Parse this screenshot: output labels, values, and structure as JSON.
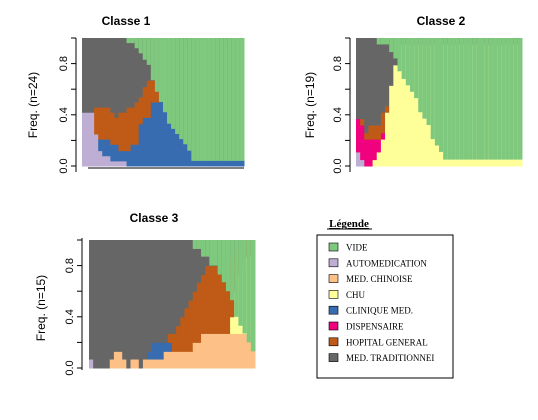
{
  "palette": {
    "VIDE": "#7fc97f",
    "AUTOMEDICATION": "#beaed4",
    "MED_CHINOISE": "#fdc086",
    "CHU": "#ffff99",
    "CLINIQUE_MED": "#386cb0",
    "DISPENSAIRE": "#f0027f",
    "HOPITAL_GENERAL": "#bf5b17",
    "MED_TRADITIONNEL": "#666666"
  },
  "legend": {
    "title": "Légende",
    "items": [
      {
        "key": "VIDE",
        "label": "VIDE"
      },
      {
        "key": "AUTOMEDICATION",
        "label": "AUTOMEDICATION"
      },
      {
        "key": "MED_CHINOISE",
        "label": "MED. CHINOISE"
      },
      {
        "key": "CHU",
        "label": "CHU"
      },
      {
        "key": "CLINIQUE_MED",
        "label": "CLINIQUE MED."
      },
      {
        "key": "DISPENSAIRE",
        "label": "DISPENSAIRE"
      },
      {
        "key": "HOPITAL_GENERAL",
        "label": "HOPITAL GENERAL"
      },
      {
        "key": "MED_TRADITIONNEL",
        "label": "MED. TRADITIONNEI"
      }
    ]
  },
  "chart_data": [
    {
      "type": "area",
      "title": "Classe 1",
      "ylabel": "Freq. (n=24)",
      "ylim": [
        0,
        1
      ],
      "yticks": [
        "0.0",
        "0.4",
        "0.8"
      ],
      "x_axis_line": true,
      "cumulative_boundaries": {
        "AUTOMEDICATION": [
          0.42,
          0.42,
          0.42,
          0.25,
          0.12,
          0.08,
          0.08,
          0.04,
          0.04,
          0.04,
          0.04,
          0,
          0,
          0,
          0,
          0,
          0,
          0,
          0,
          0,
          0,
          0,
          0,
          0,
          0,
          0,
          0,
          0,
          0,
          0,
          0,
          0,
          0,
          0,
          0,
          0,
          0,
          0,
          0,
          0
        ],
        "MED_CHINOISE": [
          0.42,
          0.42,
          0.42,
          0.25,
          0.12,
          0.08,
          0.08,
          0.04,
          0.04,
          0.04,
          0.04,
          0,
          0,
          0,
          0,
          0,
          0,
          0,
          0,
          0,
          0,
          0,
          0,
          0,
          0,
          0,
          0,
          0,
          0,
          0,
          0,
          0,
          0,
          0,
          0,
          0,
          0,
          0,
          0,
          0
        ],
        "CHU": [
          0.42,
          0.42,
          0.42,
          0.25,
          0.12,
          0.08,
          0.08,
          0.04,
          0.04,
          0.04,
          0.04,
          0,
          0,
          0,
          0,
          0,
          0,
          0,
          0,
          0,
          0,
          0,
          0,
          0,
          0,
          0,
          0,
          0,
          0,
          0,
          0,
          0,
          0,
          0,
          0,
          0,
          0,
          0,
          0,
          0
        ],
        "CLINIQUE_MED": [
          0.42,
          0.42,
          0.42,
          0.25,
          0.21,
          0.21,
          0.21,
          0.17,
          0.17,
          0.12,
          0.12,
          0.12,
          0.17,
          0.17,
          0.33,
          0.38,
          0.38,
          0.5,
          0.5,
          0.67,
          0.67,
          0.75,
          0.79,
          0.83,
          0.88,
          0.92,
          0.96,
          0.96,
          0.96,
          0.96,
          0.96,
          0.96,
          0.96,
          0.96,
          0.96,
          0.96,
          0.96,
          0.96,
          0.96,
          0.96
        ],
        "HOPITAL_GENERAL": [
          0.42,
          0.42,
          0.42,
          0.46,
          0.46,
          0.46,
          0.46,
          0.42,
          0.38,
          0.42,
          0.42,
          0.46,
          0.46,
          0.5,
          0.54,
          0.62,
          0.67,
          0.67,
          0.67,
          0.71,
          0.71,
          0.75,
          0.79,
          0.83,
          0.88,
          0.92,
          0.96,
          0.96,
          0.96,
          0.96,
          0.96,
          0.96,
          0.96,
          0.96,
          0.96,
          0.96,
          0.96,
          0.96,
          0.96,
          0.96
        ],
        "MED_TRADITIONNEL": [
          1,
          1,
          1,
          1,
          1,
          1,
          1,
          1,
          1,
          1,
          1,
          1,
          1,
          1,
          1,
          1,
          1,
          1,
          1,
          1,
          1,
          1,
          1,
          1,
          1,
          1,
          1,
          1,
          1,
          1,
          1,
          1,
          1,
          1,
          1,
          1,
          1,
          1,
          1,
          1
        ],
        "VIDE": [
          0,
          0,
          0,
          0,
          0,
          0,
          0,
          0,
          0,
          0,
          0,
          0.04,
          0.04,
          0.08,
          0.12,
          0.17,
          0.21,
          0.33,
          0.42,
          0.5,
          0.58,
          0.67,
          0.71,
          0.75,
          0.79,
          0.83,
          0.88,
          0.96,
          0.96,
          0.96,
          0.96,
          0.96,
          0.96,
          0.96,
          0.96,
          0.96,
          0.96,
          0.96,
          0.96,
          0.96
        ]
      }
    },
    {
      "type": "area",
      "title": "Classe 2",
      "ylabel": "Freq. (n=19)",
      "ylim": [
        0,
        1
      ],
      "yticks": [
        "0.0",
        "0.4",
        "0.8"
      ],
      "x_axis_line": false,
      "cumulative_boundaries": {
        "AUTOMEDICATION": [
          0.11,
          0.05,
          0,
          0,
          0,
          0,
          0,
          0,
          0,
          0,
          0,
          0,
          0,
          0,
          0,
          0,
          0,
          0,
          0,
          0,
          0,
          0,
          0,
          0,
          0,
          0,
          0,
          0,
          0,
          0,
          0,
          0,
          0,
          0,
          0,
          0,
          0,
          0,
          0,
          0
        ],
        "MED_CHINOISE": [
          0.11,
          0.05,
          0,
          0,
          0,
          0,
          0,
          0,
          0,
          0,
          0,
          0,
          0,
          0,
          0,
          0,
          0,
          0,
          0,
          0,
          0,
          0,
          0,
          0,
          0,
          0,
          0,
          0,
          0,
          0,
          0,
          0,
          0,
          0,
          0,
          0,
          0,
          0,
          0,
          0
        ],
        "CHU": [
          0.11,
          0.05,
          0,
          0,
          0.05,
          0.11,
          0.21,
          0.42,
          0.63,
          0.79,
          0.89,
          0.95,
          0.95,
          0.95,
          0.95,
          0.95,
          0.95,
          0.95,
          0.95,
          0.95,
          0.95,
          0.95,
          0.95,
          0.95,
          0.95,
          0.95,
          0.95,
          0.95,
          0.95,
          0.95,
          0.95,
          0.95,
          0.95,
          0.95,
          0.95,
          0.95,
          0.95,
          0.95,
          0.95,
          0.95
        ],
        "CLINIQUE_MED": [
          0.11,
          0.05,
          0,
          0,
          0.05,
          0.11,
          0.21,
          0.42,
          0.63,
          0.79,
          0.89,
          0.95,
          0.95,
          0.95,
          0.95,
          0.95,
          0.95,
          0.95,
          0.95,
          0.95,
          0.95,
          0.95,
          0.95,
          0.95,
          0.95,
          0.95,
          0.95,
          0.95,
          0.95,
          0.95,
          0.95,
          0.95,
          0.95,
          0.95,
          0.95,
          0.95,
          0.95,
          0.95,
          0.95,
          0.95
        ],
        "DISPENSAIRE": [
          0.37,
          0.32,
          0.21,
          0.21,
          0.21,
          0.21,
          0.26,
          0.42,
          0.63,
          0.79,
          0.89,
          0.95,
          0.95,
          0.95,
          0.95,
          0.95,
          0.95,
          0.95,
          0.95,
          0.95,
          0.95,
          0.95,
          0.95,
          0.95,
          0.95,
          0.95,
          0.95,
          0.95,
          0.95,
          0.95,
          0.95,
          0.95,
          0.95,
          0.95,
          0.95,
          0.95,
          0.95,
          0.95,
          0.95,
          0.95
        ],
        "HOPITAL_GENERAL": [
          0.37,
          0.37,
          0.26,
          0.32,
          0.32,
          0.32,
          0.42,
          0.47,
          0.63,
          0.79,
          0.89,
          0.95,
          0.95,
          0.95,
          0.95,
          0.95,
          0.95,
          0.95,
          0.95,
          0.95,
          0.95,
          0.95,
          0.95,
          0.95,
          0.95,
          0.95,
          0.95,
          0.95,
          0.95,
          0.95,
          0.95,
          0.95,
          0.95,
          0.95,
          0.95,
          0.95,
          0.95,
          0.95,
          0.95,
          0.95
        ],
        "MED_TRADITIONNEL": [
          1,
          1,
          1,
          1,
          1,
          1,
          1,
          1,
          1,
          1,
          1,
          1,
          1,
          1,
          1,
          1,
          1,
          1,
          1,
          1,
          1,
          1,
          1,
          1,
          1,
          1,
          1,
          1,
          1,
          1,
          1,
          1,
          1,
          1,
          1,
          1,
          1,
          1,
          1,
          1
        ],
        "VIDE": [
          0,
          0,
          0,
          0,
          0,
          0.05,
          0.05,
          0.05,
          0.11,
          0.16,
          0.26,
          0.32,
          0.37,
          0.42,
          0.47,
          0.58,
          0.63,
          0.68,
          0.79,
          0.84,
          0.89,
          0.95,
          0.95,
          0.95,
          0.95,
          0.95,
          0.95,
          0.95,
          0.95,
          0.95,
          0.95,
          0.95,
          0.95,
          0.95,
          0.95,
          0.95,
          0.95,
          0.95,
          0.95,
          0.95
        ]
      }
    },
    {
      "type": "area",
      "title": "Classe 3",
      "ylabel": "Freq. (n=15)",
      "ylim": [
        0,
        1
      ],
      "yticks": [
        "0.0",
        "0.4",
        "0.8"
      ],
      "x_axis_line": false,
      "cumulative_boundaries": {
        "AUTOMEDICATION": [
          0.07,
          0,
          0,
          0,
          0,
          0,
          0,
          0,
          0,
          0,
          0,
          0,
          0,
          0,
          0,
          0,
          0,
          0,
          0,
          0,
          0,
          0,
          0,
          0,
          0,
          0,
          0,
          0,
          0,
          0,
          0,
          0,
          0,
          0,
          0,
          0,
          0,
          0,
          0,
          0
        ],
        "MED_CHINOISE": [
          0.07,
          0,
          0,
          0,
          0,
          0.07,
          0.13,
          0.13,
          0.07,
          0,
          0.07,
          0.07,
          0,
          0.07,
          0.07,
          0.07,
          0.07,
          0.07,
          0.13,
          0.13,
          0.13,
          0.13,
          0.13,
          0.13,
          0.13,
          0.2,
          0.2,
          0.27,
          0.27,
          0.27,
          0.27,
          0.27,
          0.27,
          0.27,
          0.27,
          0.27,
          0.27,
          0.27,
          0.27,
          0.27
        ],
        "CHU": [
          0.07,
          0,
          0,
          0,
          0,
          0.07,
          0.13,
          0.13,
          0.07,
          0,
          0.07,
          0.07,
          0,
          0.07,
          0.07,
          0.07,
          0.07,
          0.07,
          0.13,
          0.13,
          0.13,
          0.13,
          0.13,
          0.13,
          0.13,
          0.2,
          0.2,
          0.27,
          0.27,
          0.27,
          0.27,
          0.27,
          0.27,
          0.27,
          0.4,
          0.6,
          0.73,
          0.8,
          0.87,
          0.87
        ],
        "CLINIQUE_MED": [
          0.07,
          0,
          0,
          0,
          0,
          0.07,
          0.13,
          0.13,
          0.07,
          0,
          0.07,
          0.07,
          0,
          0.07,
          0.13,
          0.2,
          0.2,
          0.2,
          0.2,
          0.2,
          0.13,
          0.13,
          0.13,
          0.13,
          0.13,
          0.2,
          0.2,
          0.27,
          0.27,
          0.27,
          0.27,
          0.27,
          0.27,
          0.27,
          0.4,
          0.6,
          0.73,
          0.8,
          0.87,
          0.87
        ],
        "HOPITAL_GENERAL": [
          0.07,
          0,
          0,
          0,
          0,
          0.07,
          0.13,
          0.13,
          0.07,
          0,
          0.07,
          0.07,
          0,
          0.07,
          0.13,
          0.2,
          0.2,
          0.2,
          0.2,
          0.27,
          0.27,
          0.33,
          0.4,
          0.47,
          0.53,
          0.6,
          0.67,
          0.73,
          0.8,
          0.8,
          0.8,
          0.8,
          0.87,
          0.87,
          0.87,
          0.87,
          0.93,
          0.93,
          1,
          1
        ],
        "MED_TRADITIONNEL": [
          1,
          1,
          1,
          1,
          1,
          1,
          1,
          1,
          1,
          1,
          1,
          1,
          1,
          1,
          1,
          1,
          1,
          1,
          1,
          1,
          1,
          1,
          1,
          1,
          1,
          1,
          1,
          1,
          1,
          1,
          1,
          1,
          1,
          1,
          1,
          1,
          1,
          1,
          1,
          1
        ],
        "VIDE": [
          0,
          0,
          0,
          0,
          0,
          0,
          0,
          0,
          0,
          0,
          0,
          0,
          0,
          0,
          0,
          0,
          0,
          0,
          0,
          0,
          0,
          0,
          0,
          0,
          0,
          0.07,
          0.07,
          0.13,
          0.13,
          0.2,
          0.2,
          0.27,
          0.33,
          0.4,
          0.47,
          0.6,
          0.67,
          0.73,
          0.8,
          0.87
        ]
      }
    }
  ]
}
